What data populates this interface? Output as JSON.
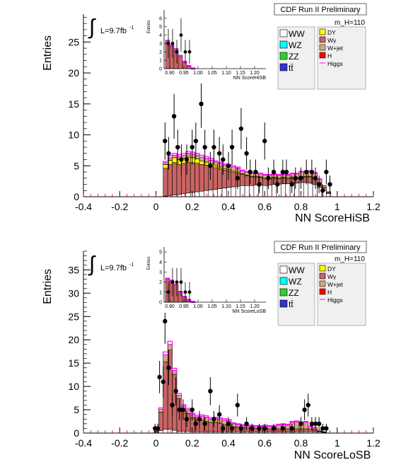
{
  "chart_data": [
    {
      "type": "bar",
      "subtype": "stacked-histogram-with-data-points",
      "header": "CDF Run II Preliminary",
      "mass_label": "m_H=110",
      "lumi_label": "L=9.7fb",
      "lumi_sup": "-1",
      "integral_symbol": "∫",
      "xlabel": "NN ScoreHiSB",
      "ylabel": "Entries",
      "xlim": [
        -0.4,
        1.2
      ],
      "ylim": [
        0,
        29.5
      ],
      "xticks": [
        "-0.4",
        "-0.2",
        "0",
        "0.2",
        "0.4",
        "0.6",
        "0.8",
        "1",
        "1.2"
      ],
      "yticks": [
        "0",
        "5",
        "10",
        "15",
        "20",
        "25"
      ],
      "bin_start": 0.04,
      "bin_width": 0.025,
      "stack": [
        {
          "name": "WW",
          "color": "#ffffff",
          "values": [
            0.1,
            0.2,
            0.3,
            0.4,
            0.5,
            0.6,
            0.7,
            0.8,
            0.9,
            1.0,
            1.1,
            1.2,
            1.3,
            1.4,
            1.5,
            1.6,
            1.7,
            1.8,
            1.8,
            1.8,
            1.9,
            1.9,
            1.8,
            1.9,
            2.0,
            2.0,
            2.1,
            2.1,
            2.2,
            2.2,
            2.3,
            2.3,
            2.2,
            2.0,
            1.5,
            1.0,
            0.5
          ]
        },
        {
          "name": "Wγ",
          "color": "#c86464",
          "values": [
            4.5,
            5.0,
            5.2,
            4.8,
            4.9,
            5.0,
            4.8,
            4.6,
            4.3,
            4.1,
            3.8,
            3.5,
            3.2,
            2.9,
            2.7,
            2.4,
            2.1,
            1.8,
            1.6,
            1.4,
            1.3,
            1.2,
            1.1,
            1.0,
            1.0,
            0.9,
            0.9,
            0.8,
            0.8,
            0.8,
            0.9,
            0.9,
            1.0,
            1.0,
            0.8,
            0.5,
            0.2
          ]
        },
        {
          "name": "DY",
          "color": "#ffff00",
          "values": [
            0.6,
            0.7,
            0.8,
            0.8,
            0.8,
            0.8,
            0.8,
            0.7,
            0.6,
            0.5,
            0.4,
            0.3,
            0.3,
            0.2,
            0.2,
            0.2,
            0.2,
            0.1,
            0.1,
            0.1,
            0.1,
            0.1,
            0.1,
            0.1,
            0.1,
            0.1,
            0.1,
            0.1,
            0.1,
            0.1,
            0.1,
            0.1,
            0.1,
            0.1,
            0.0,
            0.0,
            0.0
          ]
        },
        {
          "name": "W+jet",
          "color": "#d2aa7d",
          "values": [
            0.3,
            0.4,
            0.4,
            0.5,
            0.5,
            0.6,
            0.6,
            0.6,
            0.6,
            0.6,
            0.6,
            0.6,
            0.6,
            0.6,
            0.6,
            0.6,
            0.6,
            0.5,
            0.5,
            0.5,
            0.5,
            0.5,
            0.5,
            0.5,
            0.5,
            0.5,
            0.5,
            0.5,
            0.6,
            0.6,
            0.7,
            0.7,
            0.8,
            0.7,
            0.5,
            0.3,
            0.1
          ]
        }
      ],
      "signal": {
        "name": "Higgs",
        "color": "#ff00ff",
        "values": [
          0.2,
          0.3,
          0.3,
          0.3,
          0.3,
          0.3,
          0.3,
          0.3,
          0.3,
          0.3,
          0.3,
          0.2,
          0.2,
          0.2,
          0.2,
          0.2,
          0.2,
          0.1,
          0.1,
          0.1,
          0.1,
          0.1,
          0.1,
          0.1,
          0.1,
          0.1,
          0.1,
          0.1,
          0.1,
          0.1,
          0.1,
          0.1,
          0.1,
          0.1,
          0.1,
          0.0,
          0.0
        ]
      },
      "data": [
        [
          0.05,
          9
        ],
        [
          0.07,
          7
        ],
        [
          0.1,
          13
        ],
        [
          0.12,
          8
        ],
        [
          0.14,
          6
        ],
        [
          0.17,
          6
        ],
        [
          0.2,
          8
        ],
        [
          0.22,
          9
        ],
        [
          0.25,
          15
        ],
        [
          0.27,
          8
        ],
        [
          0.3,
          5
        ],
        [
          0.32,
          8
        ],
        [
          0.35,
          7
        ],
        [
          0.37,
          6
        ],
        [
          0.4,
          5
        ],
        [
          0.42,
          8
        ],
        [
          0.45,
          3
        ],
        [
          0.47,
          11
        ],
        [
          0.5,
          7
        ],
        [
          0.52,
          4
        ],
        [
          0.55,
          4
        ],
        [
          0.57,
          2
        ],
        [
          0.6,
          9
        ],
        [
          0.62,
          3
        ],
        [
          0.65,
          4
        ],
        [
          0.67,
          2
        ],
        [
          0.7,
          4
        ],
        [
          0.72,
          4
        ],
        [
          0.75,
          2
        ],
        [
          0.77,
          3
        ],
        [
          0.8,
          3
        ],
        [
          0.83,
          4
        ],
        [
          0.86,
          4
        ],
        [
          0.88,
          3
        ],
        [
          0.9,
          2
        ],
        [
          0.92,
          1
        ],
        [
          0.94,
          4
        ],
        [
          0.96,
          2
        ]
      ],
      "inset": {
        "xlabel": "NN ScoreHiSB",
        "ylabel": "Entries",
        "xlim": [
          0.88,
          1.24
        ],
        "ylim": [
          0,
          7
        ],
        "xticks": [
          "0.90",
          "0.95",
          "1.00",
          "1.05",
          "1.10",
          "1.15",
          "1.20"
        ],
        "yticks": [
          "0",
          "1",
          "2",
          "3",
          "4",
          "5",
          "6"
        ],
        "bins": [
          0.885,
          0.9,
          0.915,
          0.93,
          0.945,
          0.96,
          0.975,
          0.99
        ],
        "totals": [
          3.4,
          2.8,
          2.4,
          1.6,
          0.9,
          0.4,
          0.1
        ],
        "data": [
          [
            0.895,
            3
          ],
          [
            0.91,
            3
          ],
          [
            0.925,
            2
          ],
          [
            0.94,
            4
          ],
          [
            0.955,
            2
          ],
          [
            0.97,
            2
          ]
        ]
      },
      "legend_left": [
        {
          "label": "WW",
          "color": "#ffffff"
        },
        {
          "label": "WZ",
          "color": "#00ffff"
        },
        {
          "label": "ZZ",
          "color": "#33cc33"
        },
        {
          "label": "tt̄",
          "color": "#3333cc"
        }
      ],
      "legend_right": [
        {
          "label": "DY",
          "color": "#ffff00"
        },
        {
          "label": "Wγ",
          "color": "#c86464"
        },
        {
          "label": "W+jet",
          "color": "#d2aa7d"
        },
        {
          "label": "H",
          "color": "#ff0000"
        },
        {
          "label": "Higgs",
          "color": "#ff00ff",
          "line": true
        }
      ]
    },
    {
      "type": "bar",
      "subtype": "stacked-histogram-with-data-points",
      "header": "CDF Run II Preliminary",
      "mass_label": "m_H=110",
      "lumi_label": "L=9.7fb",
      "lumi_sup": "-1",
      "integral_symbol": "∫",
      "xlabel": "NN ScoreLoSB",
      "ylabel": "Entries",
      "xlim": [
        -0.4,
        1.2
      ],
      "ylim": [
        0,
        39
      ],
      "xticks": [
        "-0.4",
        "-0.2",
        "0",
        "0.2",
        "0.4",
        "0.6",
        "0.8",
        "1",
        "1.2"
      ],
      "yticks": [
        "0",
        "5",
        "10",
        "15",
        "20",
        "25",
        "30",
        "35"
      ],
      "bin_start": -0.01,
      "bin_width": 0.025,
      "stack": [
        {
          "name": "WW",
          "color": "#ffffff",
          "values": [
            0.2,
            0.5,
            0.8,
            0.8,
            0.6,
            0.4,
            0.4,
            0.4,
            0.3,
            0.3,
            0.3,
            0.3,
            0.3,
            0.3,
            0.3,
            0.3,
            0.3,
            0.3,
            0.3,
            0.3,
            0.3,
            0.3,
            0.3,
            0.3,
            0.3,
            0.3,
            0.3,
            0.3,
            0.3,
            0.3,
            0.3,
            0.3,
            0.3,
            0.3,
            0.3,
            0.3,
            0.2,
            0.1,
            0.0
          ]
        },
        {
          "name": "Wγ",
          "color": "#c86464",
          "values": [
            0.8,
            4.0,
            14.5,
            17.0,
            12.0,
            7.0,
            4.5,
            3.8,
            3.0,
            2.5,
            2.5,
            2.2,
            2.0,
            2.0,
            1.8,
            1.5,
            1.3,
            1.0,
            1.0,
            0.9,
            0.8,
            0.8,
            0.7,
            0.8,
            0.7,
            0.6,
            0.6,
            0.6,
            0.6,
            0.6,
            0.6,
            0.6,
            0.6,
            0.6,
            0.5,
            0.4,
            0.2,
            0.1,
            0.0
          ]
        },
        {
          "name": "W+jet",
          "color": "#d2aa7d",
          "values": [
            0.3,
            0.6,
            1.5,
            1.2,
            0.8,
            0.7,
            0.9,
            0.8,
            0.7,
            0.7,
            0.8,
            0.9,
            0.7,
            0.8,
            0.9,
            1.0,
            1.0,
            0.7,
            0.5,
            0.4,
            0.4,
            0.4,
            0.4,
            0.3,
            0.5,
            0.5,
            0.5,
            0.8,
            0.9,
            0.8,
            1.4,
            1.5,
            1.3,
            1.4,
            0.6,
            0.4,
            0.2,
            0.1,
            0.0
          ]
        }
      ],
      "signal": {
        "name": "Higgs",
        "color": "#ff00ff",
        "values": [
          0.0,
          0.3,
          0.6,
          0.7,
          0.5,
          0.4,
          0.3,
          0.3,
          0.3,
          0.3,
          0.3,
          0.3,
          0.3,
          0.3,
          0.3,
          0.3,
          0.3,
          0.2,
          0.2,
          0.2,
          0.2,
          0.2,
          0.2,
          0.2,
          0.2,
          0.2,
          0.2,
          0.2,
          0.2,
          0.2,
          0.2,
          0.2,
          0.2,
          0.2,
          0.1,
          0.1,
          0.0,
          0.0,
          0.0
        ]
      },
      "data": [
        [
          -0.005,
          1
        ],
        [
          0.01,
          1
        ],
        [
          0.02,
          12
        ],
        [
          0.04,
          11
        ],
        [
          0.05,
          24
        ],
        [
          0.07,
          14
        ],
        [
          0.09,
          6
        ],
        [
          0.11,
          9
        ],
        [
          0.13,
          5
        ],
        [
          0.15,
          5
        ],
        [
          0.17,
          3
        ],
        [
          0.2,
          5
        ],
        [
          0.22,
          2
        ],
        [
          0.24,
          3
        ],
        [
          0.27,
          2
        ],
        [
          0.3,
          9
        ],
        [
          0.32,
          3
        ],
        [
          0.35,
          4
        ],
        [
          0.37,
          1
        ],
        [
          0.4,
          2
        ],
        [
          0.42,
          1
        ],
        [
          0.45,
          6
        ],
        [
          0.47,
          1
        ],
        [
          0.5,
          2
        ],
        [
          0.53,
          1
        ],
        [
          0.57,
          1
        ],
        [
          0.6,
          1
        ],
        [
          0.65,
          1
        ],
        [
          0.7,
          1
        ],
        [
          0.75,
          1
        ],
        [
          0.8,
          2
        ],
        [
          0.82,
          5
        ],
        [
          0.84,
          6
        ],
        [
          0.86,
          2
        ],
        [
          0.88,
          2
        ],
        [
          0.9,
          2
        ],
        [
          0.92,
          1
        ],
        [
          0.94,
          1
        ]
      ],
      "inset": {
        "xlabel": "NN ScoreLoSB",
        "ylabel": "Entries",
        "xlim": [
          0.88,
          1.24
        ],
        "ylim": [
          0,
          5.5
        ],
        "xticks": [
          "0.90",
          "0.95",
          "1.00",
          "1.05",
          "1.10",
          "1.15",
          "1.20"
        ],
        "yticks": [
          "0",
          "1",
          "2",
          "3",
          "4",
          "5"
        ],
        "bins": [
          0.885,
          0.9,
          0.915,
          0.93,
          0.945,
          0.96,
          0.975,
          0.99
        ],
        "totals": [
          2.4,
          2.2,
          1.8,
          1.1,
          0.6,
          0.3,
          0.1
        ],
        "data": [
          [
            0.895,
            1
          ],
          [
            0.91,
            2
          ],
          [
            0.925,
            2
          ],
          [
            0.94,
            2
          ],
          [
            0.955,
            1
          ],
          [
            0.97,
            1
          ]
        ]
      },
      "legend_left": [
        {
          "label": "WW",
          "color": "#ffffff"
        },
        {
          "label": "WZ",
          "color": "#00ffff"
        },
        {
          "label": "ZZ",
          "color": "#33cc33"
        },
        {
          "label": "tt̄",
          "color": "#3333cc"
        }
      ],
      "legend_right": [
        {
          "label": "DY",
          "color": "#ffff00"
        },
        {
          "label": "Wγ",
          "color": "#c86464"
        },
        {
          "label": "W+jet",
          "color": "#d2aa7d"
        },
        {
          "label": "H",
          "color": "#ff0000"
        },
        {
          "label": "Higgs",
          "color": "#ff00ff",
          "line": true
        }
      ]
    }
  ]
}
